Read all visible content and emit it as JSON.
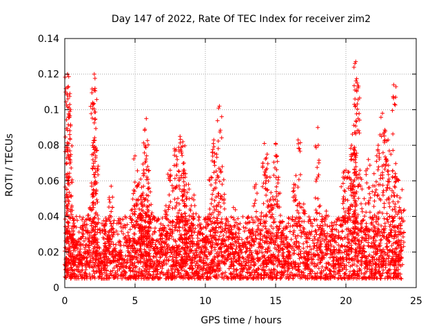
{
  "chart_data": {
    "type": "scatter",
    "title": "Day 147 of 2022, Rate Of TEC Index for receiver zim2",
    "xlabel": "GPS time / hours",
    "ylabel": "ROTI / TECUs",
    "xlim": [
      0,
      25
    ],
    "ylim": [
      0,
      0.14
    ],
    "x_ticks": [
      "0",
      "5",
      "10",
      "15",
      "20",
      "25"
    ],
    "y_ticks": [
      "0",
      "0.02",
      "0.04",
      "0.06",
      "0.08",
      "0.1",
      "0.12",
      "0.14"
    ],
    "grid": true,
    "marker": "+",
    "color": "#ff0000",
    "data_range_x": [
      0,
      24
    ],
    "series": [
      {
        "x": [
          0.0,
          0.12,
          0.2,
          0.25,
          0.3,
          0.35,
          0.5,
          0.6,
          0.8,
          1.0,
          1.2,
          1.5,
          1.7,
          1.8,
          2.0,
          2.1,
          2.15,
          2.2,
          2.3,
          2.5,
          2.7,
          3.0,
          3.2,
          3.3,
          3.5,
          4.0,
          4.5,
          4.8,
          5.0,
          5.2,
          5.4,
          5.5,
          5.6,
          5.7,
          5.8,
          5.9,
          6.0,
          6.2,
          6.5,
          6.8,
          7.0,
          7.2,
          7.5,
          7.8,
          8.0,
          8.2,
          8.4,
          8.5,
          8.6,
          8.8,
          9.0,
          9.2,
          9.5,
          9.8,
          10.0,
          10.2,
          10.4,
          10.6,
          10.8,
          11.0,
          11.2,
          11.5,
          11.8,
          12.0,
          12.3,
          12.6,
          13.0,
          13.3,
          13.6,
          14.0,
          14.2,
          14.4,
          14.6,
          14.8,
          15.0,
          15.2,
          15.5,
          15.8,
          16.0,
          16.3,
          16.6,
          17.0,
          17.3,
          17.6,
          18.0,
          18.3,
          18.6,
          19.0,
          19.3,
          19.6,
          19.8,
          20.0,
          20.2,
          20.4,
          20.5,
          20.6,
          20.7,
          20.8,
          21.0,
          21.3,
          21.6,
          22.0,
          22.3,
          22.6,
          22.8,
          23.0,
          23.2,
          23.4,
          23.6,
          23.8,
          24.0
        ],
        "y": [
          0.013,
          0.062,
          0.12,
          0.113,
          0.101,
          0.086,
          0.046,
          0.03,
          0.026,
          0.02,
          0.018,
          0.038,
          0.031,
          0.045,
          0.103,
          0.12,
          0.112,
          0.074,
          0.024,
          0.018,
          0.02,
          0.038,
          0.032,
          0.057,
          0.022,
          0.02,
          0.031,
          0.044,
          0.074,
          0.049,
          0.061,
          0.052,
          0.057,
          0.089,
          0.095,
          0.068,
          0.056,
          0.042,
          0.023,
          0.029,
          0.035,
          0.046,
          0.066,
          0.078,
          0.072,
          0.085,
          0.082,
          0.066,
          0.064,
          0.058,
          0.046,
          0.052,
          0.031,
          0.026,
          0.028,
          0.04,
          0.062,
          0.083,
          0.075,
          0.102,
          0.068,
          0.039,
          0.031,
          0.045,
          0.034,
          0.027,
          0.028,
          0.032,
          0.058,
          0.042,
          0.081,
          0.075,
          0.062,
          0.051,
          0.081,
          0.062,
          0.037,
          0.025,
          0.024,
          0.058,
          0.083,
          0.047,
          0.028,
          0.036,
          0.09,
          0.04,
          0.043,
          0.035,
          0.029,
          0.035,
          0.062,
          0.066,
          0.065,
          0.08,
          0.075,
          0.103,
          0.127,
          0.115,
          0.066,
          0.05,
          0.072,
          0.064,
          0.08,
          0.098,
          0.088,
          0.083,
          0.075,
          0.114,
          0.061,
          0.045,
          0.055
        ],
        "baseline_band": [
          0.005,
          0.03
        ]
      }
    ]
  }
}
